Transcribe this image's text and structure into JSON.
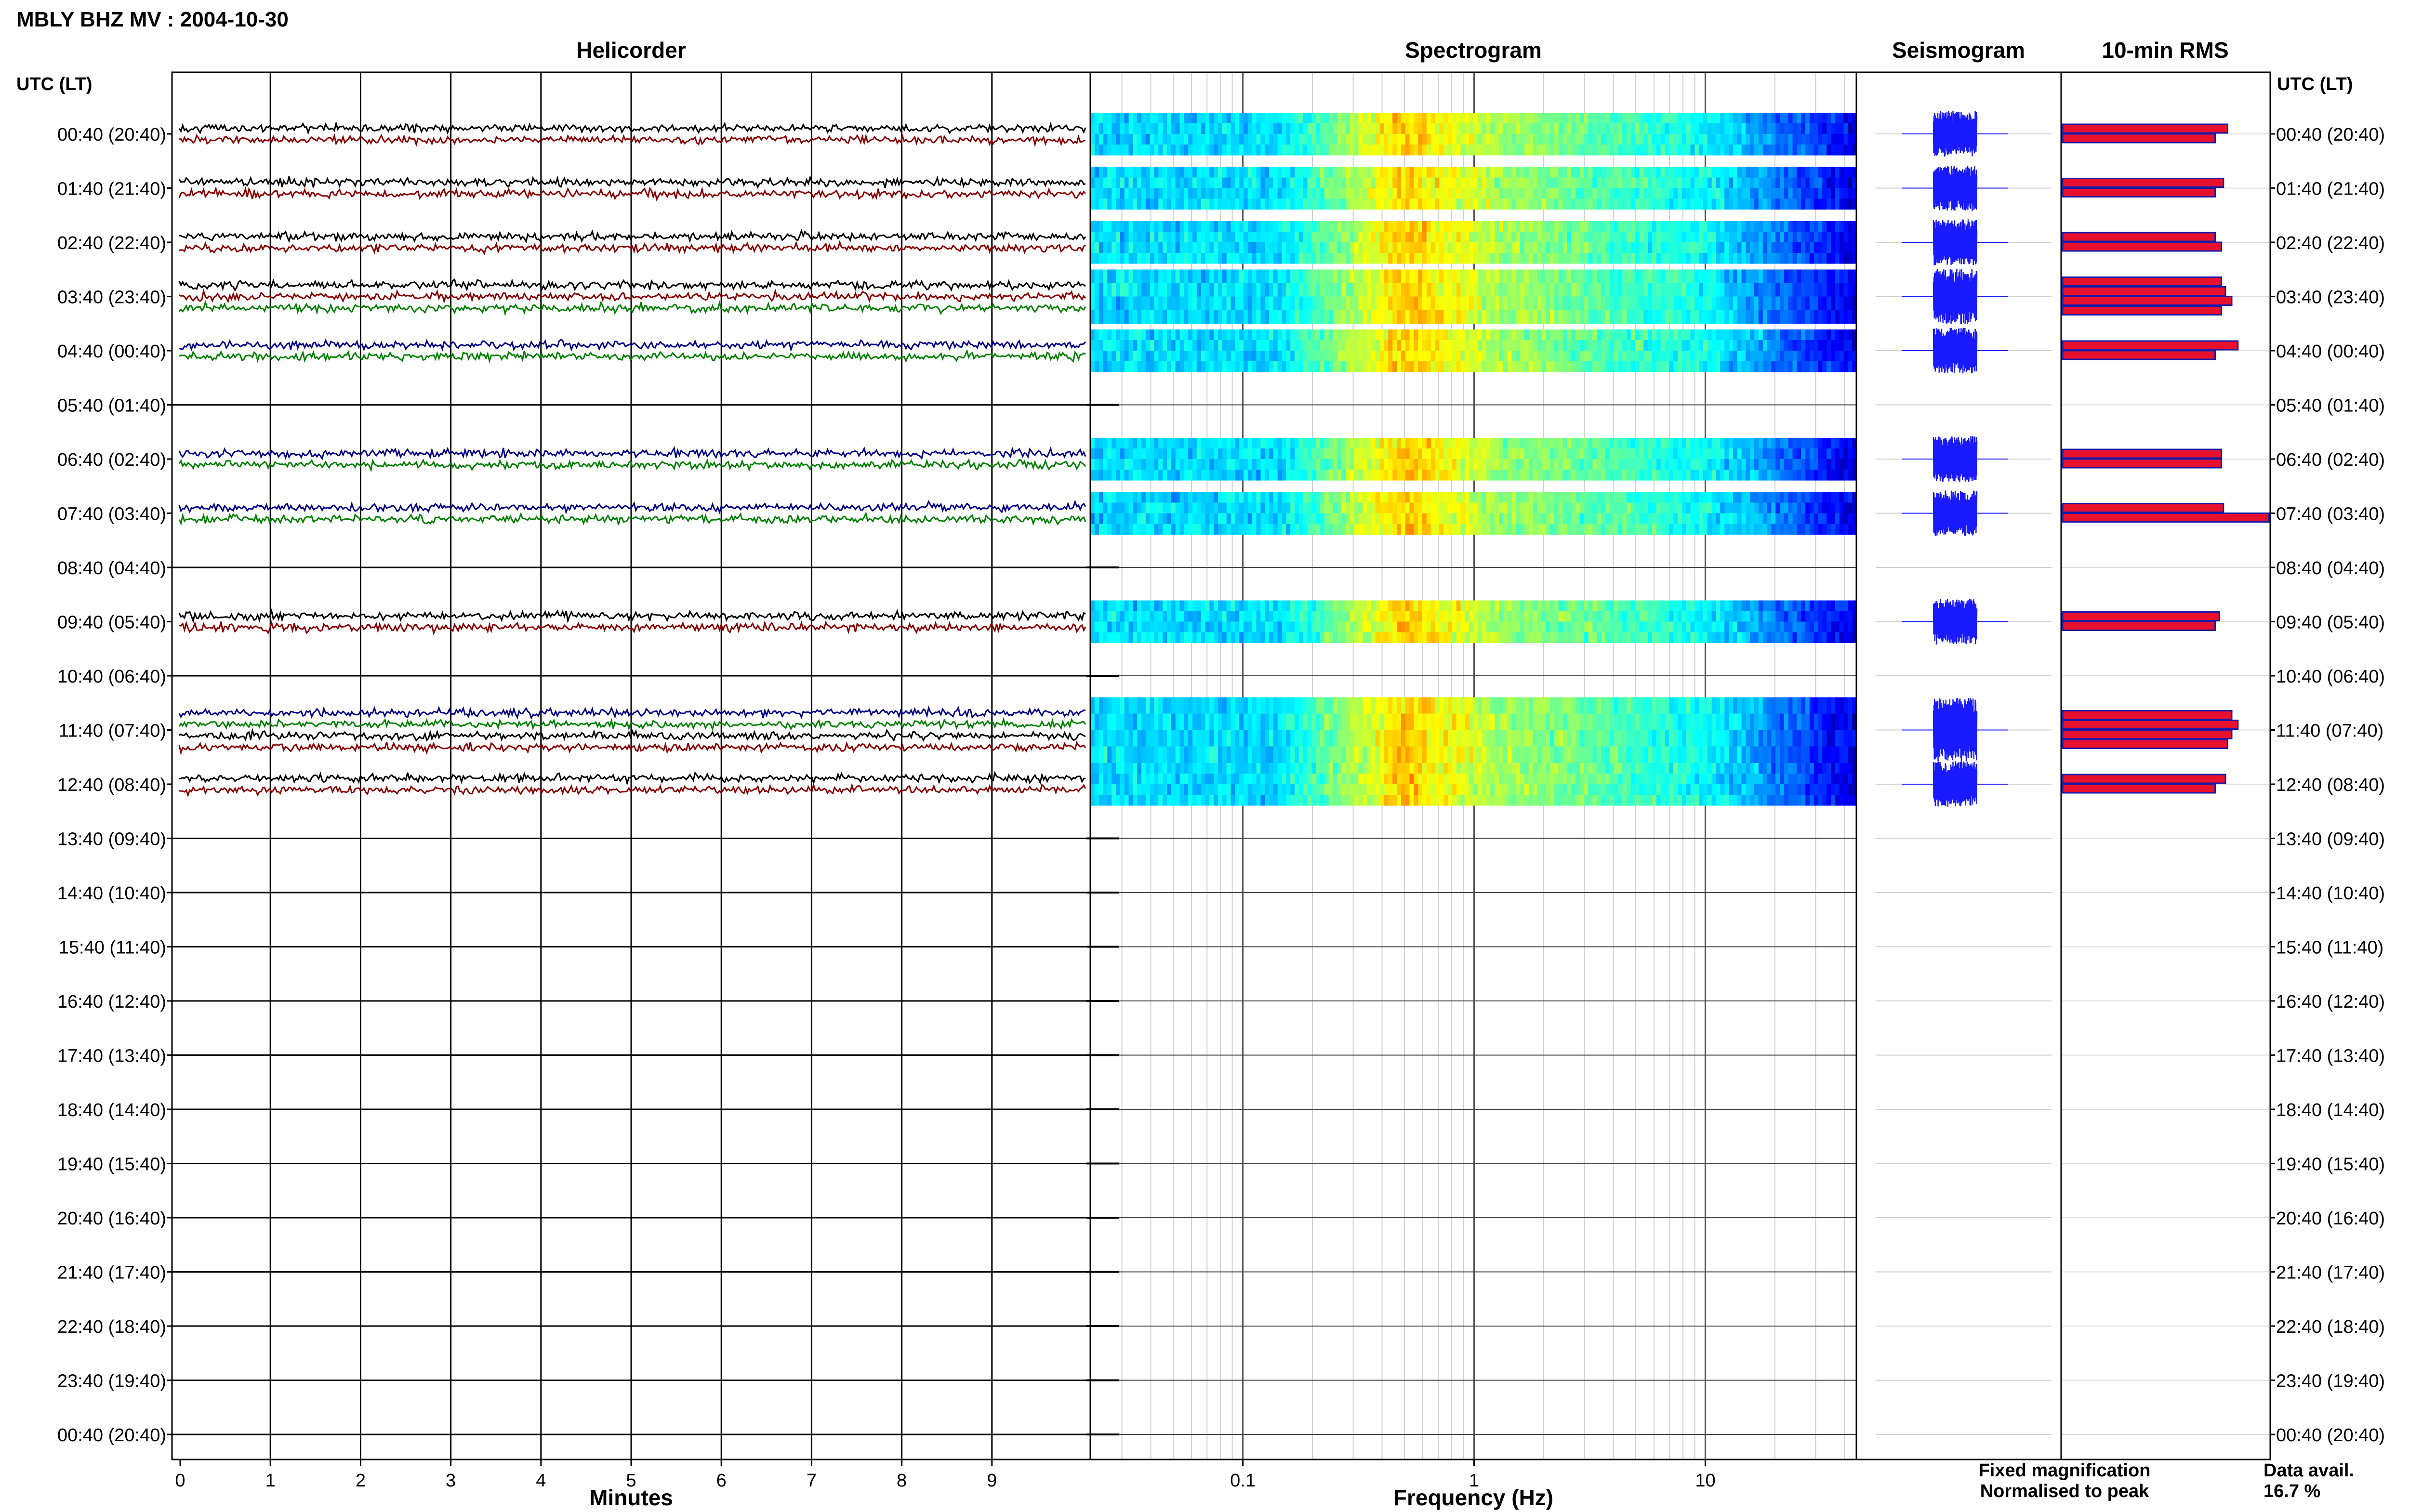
{
  "title": "MBLY BHZ MV : 2004-10-30",
  "panels": {
    "helicorder": "Helicorder",
    "spectrogram": "Spectrogram",
    "seismogram": "Seismogram",
    "rms": "10-min RMS"
  },
  "tz_label_left": "UTC (LT)",
  "tz_label_right": "UTC (LT)",
  "row_labels": [
    "00:40 (20:40)",
    "01:40 (21:40)",
    "02:40 (22:40)",
    "03:40 (23:40)",
    "04:40 (00:40)",
    "05:40 (01:40)",
    "06:40 (02:40)",
    "07:40 (03:40)",
    "08:40 (04:40)",
    "09:40 (05:40)",
    "10:40 (06:40)",
    "11:40 (07:40)",
    "12:40 (08:40)",
    "13:40 (09:40)",
    "14:40 (10:40)",
    "15:40 (11:40)",
    "16:40 (12:40)",
    "17:40 (13:40)",
    "18:40 (14:40)",
    "19:40 (15:40)",
    "20:40 (16:40)",
    "21:40 (17:40)",
    "22:40 (18:40)",
    "23:40 (19:40)",
    "00:40 (20:40)"
  ],
  "x_axes": {
    "helicorder": {
      "label": "Minutes",
      "ticks": [
        "0",
        "1",
        "2",
        "3",
        "4",
        "5",
        "6",
        "7",
        "8",
        "9"
      ]
    },
    "spectrogram": {
      "label": "Frequency (Hz)",
      "ticks": [
        "0.1",
        "1",
        "10"
      ],
      "scale": "log"
    }
  },
  "legend": {
    "fixed": "Fixed magnification",
    "normalised": "Normalised to peak",
    "fixed_color": "#0000ff",
    "normalised_color": "#ff0000"
  },
  "data_avail": {
    "label": "Data avail.",
    "value": "16.7 %"
  },
  "colors": {
    "trace_black": "#000000",
    "trace_red": "#8b0000",
    "trace_blue": "#00008b",
    "trace_green": "#008000",
    "rms_fill": "#e8112d",
    "rms_outline": "#1a1aa8",
    "seismo": "#1a1aff"
  },
  "chart_data": {
    "type": "heatmap",
    "rows_with_data": [
      0,
      1,
      2,
      3,
      4,
      6,
      7,
      9,
      11,
      12
    ],
    "trace_colors_by_row": {
      "0": [
        "black",
        "red"
      ],
      "1": [
        "black",
        "red"
      ],
      "2": [
        "black",
        "red"
      ],
      "3": [
        "black",
        "red",
        "green"
      ],
      "4": [
        "blue",
        "green"
      ],
      "6": [
        "blue",
        "green"
      ],
      "7": [
        "blue",
        "green"
      ],
      "9": [
        "black",
        "red"
      ],
      "11": [
        "blue",
        "green",
        "black",
        "red"
      ],
      "12": [
        "black",
        "red"
      ]
    },
    "rms_bars_by_row": {
      "0": [
        0.8,
        0.74
      ],
      "1": [
        0.78,
        0.74
      ],
      "2": [
        0.74,
        0.77
      ],
      "3": [
        0.77,
        0.79,
        0.82,
        0.77
      ],
      "4": [
        0.85,
        0.74
      ],
      "6": [
        0.77,
        0.77
      ],
      "7": [
        0.78,
        1.0
      ],
      "9": [
        0.76,
        0.74
      ],
      "11": [
        0.82,
        0.85,
        0.82,
        0.8
      ],
      "12": [
        0.79,
        0.74
      ]
    }
  }
}
